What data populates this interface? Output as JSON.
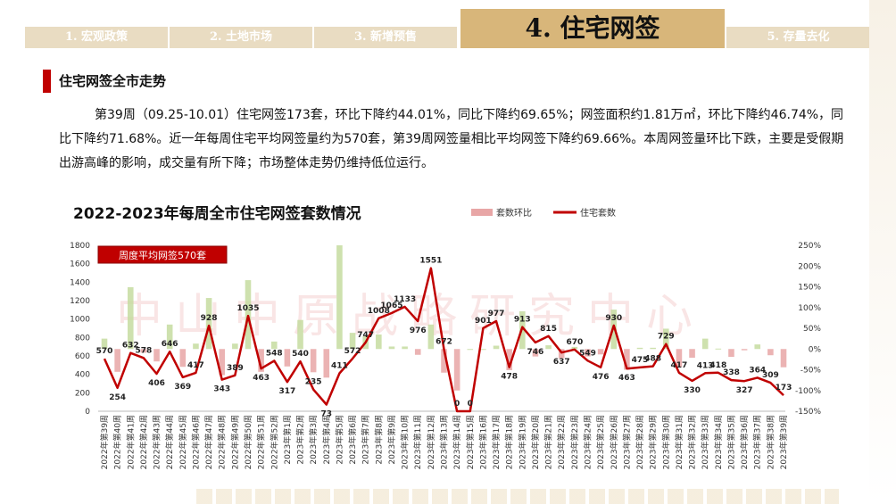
{
  "tabs": [
    {
      "label": "1. 宏观政策",
      "active": false
    },
    {
      "label": "2. 土地市场",
      "active": false
    },
    {
      "label": "3. 新增预售",
      "active": false
    },
    {
      "label": "4. 住宅网签",
      "active": true
    },
    {
      "label": "5. 存量去化",
      "active": false
    }
  ],
  "section_title": "住宅网签全市走势",
  "paragraph": "第39周（09.25-10.01）住宅网签173套，环比下降约44.01%，同比下降约69.65%；网签面积约1.81万㎡，环比下降约46.74%，同比下降约71.68%。近一年每周住宅平均网签量约为570套，第39周网签量相比平均网签下降约69.66%。本周网签量环比下跌，主要是受假期出游高峰的影响，成交量有所下降；市场整体走势仍维持低位运行。",
  "watermark": "中山中原战略研究中心",
  "colors": {
    "accent": "#c00000",
    "bar": "#c6dca0",
    "bar_neg": "#e8a6a6",
    "tab": "#e9dcc2",
    "tab_active": "#d8b67a"
  },
  "chart_data": {
    "type": "bar+line",
    "title": "2022-2023年每周全市住宅网签套数情况",
    "legend": [
      "套数环比",
      "住宅套数"
    ],
    "legend_position": "top",
    "average_label": "周度平均网签570套",
    "left_axis": {
      "min": 0,
      "max": 1800,
      "ticks": [
        0,
        200,
        400,
        600,
        800,
        1000,
        1200,
        1400,
        1600,
        1800
      ]
    },
    "right_axis": {
      "min": -150,
      "max": 250,
      "ticks": [
        "-150%",
        "-100%",
        "-50%",
        "0%",
        "50%",
        "100%",
        "150%",
        "200%",
        "250%"
      ]
    },
    "categories": [
      "2022年第39周",
      "2022年第40周",
      "2022年第41周",
      "2022年第42周",
      "2022年第43周",
      "2022年第44周",
      "2022年第45周",
      "2022年第46周",
      "2022年第47周",
      "2022年第48周",
      "2022年第49周",
      "2022年第50周",
      "2022年第51周",
      "2022年第52周",
      "2023年第1周",
      "2023年第2周",
      "2023年第3周",
      "2023年第4周",
      "2023年第5周",
      "2023年第6周",
      "2023年第7周",
      "2023年第8周",
      "2023年第9周",
      "2023年第10周",
      "2023年第11周",
      "2023年第12周",
      "2023年第13周",
      "2023年第14周",
      "2023年第15周",
      "2023年第16周",
      "2023年第17周",
      "2023年第18周",
      "2023年第19周",
      "2023年第20周",
      "2023年第21周",
      "2023年第22周",
      "2023年第23周",
      "2023年第24周",
      "2023年第25周",
      "2023年第26周",
      "2023年第27周",
      "2023年第28周",
      "2023年第29周",
      "2023年第30周",
      "2023年第31周",
      "2023年第32周",
      "2023年第33周",
      "2023年第34周",
      "2023年第35周",
      "2023年第36周",
      "2023年第37周",
      "2023年第38周",
      "2023年第39周"
    ],
    "series": [
      {
        "name": "住宅套数",
        "kind": "line",
        "values": [
          570,
          254,
          632,
          578,
          406,
          646,
          369,
          417,
          928,
          343,
          389,
          1035,
          463,
          548,
          317,
          540,
          235,
          73,
          411,
          572,
          747,
          1008,
          1065,
          1133,
          976,
          1551,
          672,
          0,
          0,
          901,
          977,
          478,
          913,
          746,
          815,
          637,
          670,
          549,
          476,
          930,
          463,
          475,
          488,
          729,
          417,
          330,
          413,
          418,
          338,
          327,
          364,
          309,
          173
        ]
      },
      {
        "name": "套数环比",
        "kind": "bar",
        "values": [
          25,
          -55,
          149,
          -9,
          -30,
          59,
          -43,
          13,
          123,
          -63,
          13,
          166,
          -55,
          18,
          -42,
          70,
          -56,
          -69,
          463,
          39,
          31,
          35,
          6,
          6,
          -14,
          59,
          -57,
          -100,
          0,
          0,
          8,
          -51,
          91,
          -18,
          9,
          -22,
          5,
          -18,
          -13,
          95,
          -50,
          3,
          3,
          49,
          -43,
          -21,
          25,
          1,
          -19,
          -3,
          11,
          -15,
          -44
        ]
      }
    ]
  }
}
